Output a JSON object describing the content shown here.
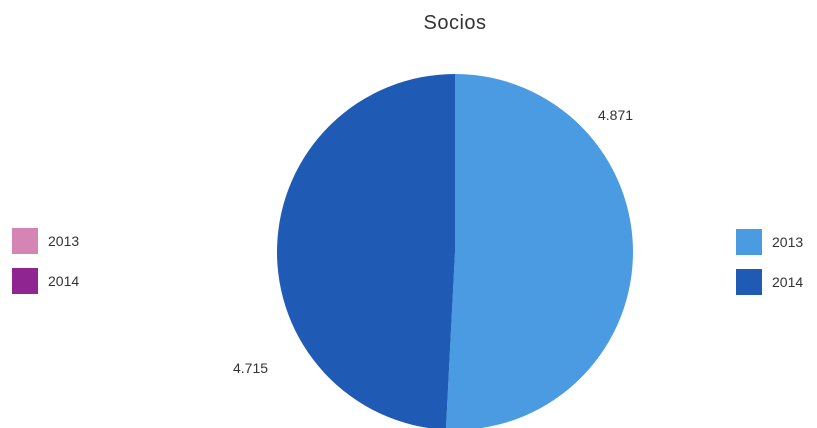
{
  "chart_data": {
    "type": "pie",
    "title": "Socios",
    "categories": [
      "2013",
      "2014"
    ],
    "values": [
      4871,
      4715
    ],
    "value_labels": [
      "4.871",
      "4.715"
    ],
    "colors": [
      "#4b9be3",
      "#1f5bb5"
    ],
    "legend_placement": "right"
  },
  "legend_secondary": {
    "placement": "left",
    "items": [
      {
        "label": "2013",
        "color": "#d485b3"
      },
      {
        "label": "2014",
        "color": "#8e2590"
      }
    ]
  }
}
